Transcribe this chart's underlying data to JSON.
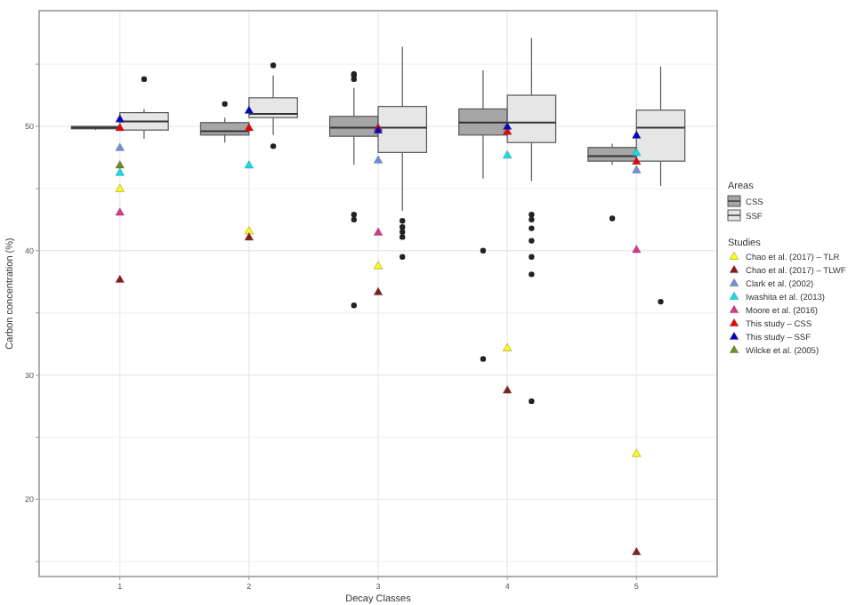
{
  "chart_data": {
    "type": "box",
    "xlabel": "Decay Classes",
    "ylabel": "Carbon concentration (%)",
    "categories": [
      "1",
      "2",
      "3",
      "4",
      "5"
    ],
    "ylim": [
      13.8,
      59.3
    ],
    "yticks": [
      {
        "value": 15,
        "label": null
      },
      20,
      {
        "value": 25,
        "label": null
      },
      30,
      {
        "value": 35,
        "label": null
      },
      40,
      {
        "value": 45,
        "label": null
      },
      50,
      {
        "value": 55,
        "label": null
      }
    ],
    "grid": true,
    "legend": "right",
    "legend_title": "Studies",
    "annotations": [
      "Areas"
    ],
    "marker": "triangle",
    "series": [
      {
        "name": "CSS",
        "color": "#a6a6a6",
        "boxes": [
          {
            "low": 49.7,
            "q1": 49.8,
            "median": 49.9,
            "q3": 50.0,
            "high": 50.0
          },
          {
            "low": 48.7,
            "q1": 49.3,
            "median": 49.6,
            "q3": 50.3,
            "high": 50.7,
            "outliers": [
              51.8
            ]
          },
          {
            "low": 46.9,
            "q1": 49.2,
            "median": 49.9,
            "q3": 50.8,
            "high": 53.1,
            "outliers": [
              54.2,
              54.1,
              53.8,
              42.9,
              42.5,
              35.6
            ]
          },
          {
            "low": 45.8,
            "q1": 49.3,
            "median": 50.3,
            "q3": 51.4,
            "high": 54.5,
            "outliers": [
              40.0,
              31.3
            ]
          },
          {
            "low": 46.9,
            "q1": 47.2,
            "median": 47.6,
            "q3": 48.3,
            "high": 48.6,
            "outliers": [
              42.6
            ]
          }
        ]
      },
      {
        "name": "SSF",
        "color": "#e6e6e6",
        "boxes": [
          {
            "low": 49.0,
            "q1": 49.7,
            "median": 50.4,
            "q3": 51.1,
            "high": 51.4,
            "outliers": [
              53.8
            ]
          },
          {
            "low": 49.3,
            "q1": 50.7,
            "median": 51.0,
            "q3": 52.3,
            "high": 54.1,
            "outliers": [
              54.9,
              48.4
            ]
          },
          {
            "low": 43.2,
            "q1": 47.9,
            "median": 49.9,
            "q3": 51.6,
            "high": 56.4,
            "outliers": [
              42.4,
              41.9,
              41.5,
              41.1,
              39.5
            ]
          },
          {
            "low": 45.6,
            "q1": 48.7,
            "median": 50.3,
            "q3": 52.5,
            "high": 57.1,
            "outliers": [
              42.9,
              42.5,
              41.8,
              40.8,
              39.5,
              38.1,
              27.9
            ]
          },
          {
            "low": 45.2,
            "q1": 47.2,
            "median": 49.9,
            "q3": 51.3,
            "high": 54.8,
            "outliers": [
              35.9
            ]
          }
        ]
      },
      {
        "name": "Chao et al. (2017) – TLR",
        "type": "scatter",
        "color": "#ffff00",
        "values": [
          45.0,
          41.6,
          38.8,
          32.2,
          23.7
        ]
      },
      {
        "name": "Chao et al. (2017) – TLWF",
        "type": "scatter",
        "color": "#8b1a1a",
        "values": [
          37.7,
          41.1,
          36.7,
          28.8,
          15.8
        ]
      },
      {
        "name": "Clark et al. (2002)",
        "type": "scatter",
        "color": "#6e8fdc",
        "values": [
          48.3,
          null,
          47.3,
          null,
          46.5
        ]
      },
      {
        "name": "Iwashita et al. (2013)",
        "type": "scatter",
        "color": "#00e5ee",
        "values": [
          46.3,
          46.9,
          null,
          47.7,
          47.9
        ]
      },
      {
        "name": "Moore et al. (2016)",
        "type": "scatter",
        "color": "#e62e8a",
        "values": [
          43.1,
          null,
          41.5,
          null,
          40.1
        ]
      },
      {
        "name": "This study – CSS",
        "type": "scatter",
        "color": "#ee0000",
        "values": [
          49.9,
          49.9,
          49.9,
          49.6,
          47.2
        ]
      },
      {
        "name": "This study – SSF",
        "type": "scatter",
        "color": "#0000cd",
        "values": [
          50.6,
          51.3,
          49.7,
          50.0,
          49.3
        ]
      },
      {
        "name": "Wilcke et al. (2005)",
        "type": "scatter",
        "color": "#6b8e23",
        "values": [
          46.9,
          null,
          null,
          null,
          null
        ]
      }
    ]
  }
}
